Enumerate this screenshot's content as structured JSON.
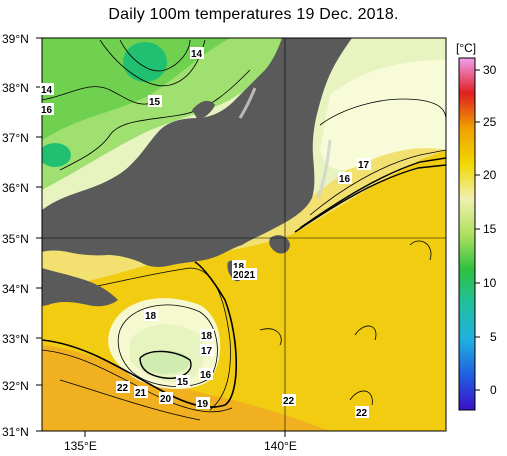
{
  "title": "Daily 100m temperatures 19 Dec. 2018.",
  "lat_labels": [
    "39°N",
    "38°N",
    "37°N",
    "36°N",
    "35°N",
    "34°N",
    "33°N",
    "32°N",
    "31°N"
  ],
  "lon_labels": [
    "135°E",
    "140°E"
  ],
  "colorbar": {
    "unit": "[°C]",
    "ticks": [
      "30",
      "25",
      "20",
      "15",
      "10",
      "5",
      "0"
    ]
  },
  "contour_labels": [
    "14",
    "14",
    "16",
    "15",
    "17",
    "16",
    "18",
    "18",
    "18",
    "17",
    "16",
    "15",
    "20",
    "21",
    "22",
    "21",
    "20",
    "19",
    "22",
    "22"
  ],
  "colors": {
    "land": "#5a5a5a",
    "warm": "#f4c400",
    "mid": "#f2e060",
    "cool": "#dcf0a0",
    "cold": "#40c040",
    "white": "#f8fbe6"
  }
}
